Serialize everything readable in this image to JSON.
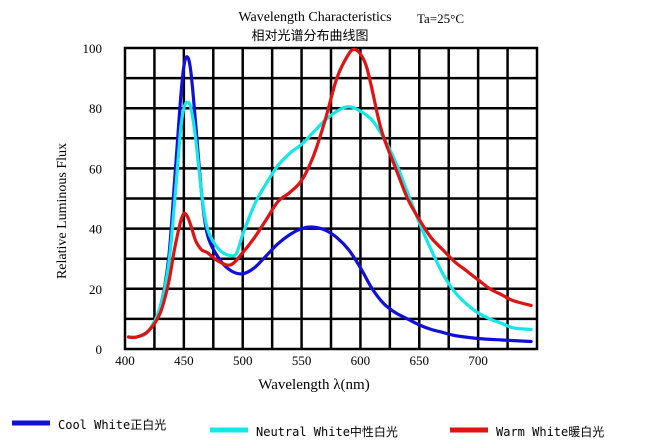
{
  "chart_data": {
    "type": "line",
    "title": "Wavelength Characteristics",
    "subtitle": "相对光谱分布曲线图",
    "condition": "Ta=25°C",
    "xlabel": "Wavelength λ(nm)",
    "ylabel": "Relative Luminous Flux",
    "xlim": [
      400,
      750
    ],
    "ylim": [
      0,
      100
    ],
    "x_ticks": [
      400,
      450,
      500,
      550,
      600,
      650,
      700
    ],
    "x_tick_labels": [
      "400",
      "450",
      "500",
      "550",
      "600",
      "650",
      "700"
    ],
    "y_ticks": [
      0,
      20,
      40,
      60,
      80,
      100
    ],
    "y_tick_labels": [
      "0",
      "20",
      "40",
      "60",
      "80",
      "100"
    ],
    "grid": true,
    "legend_position": "bottom",
    "series": [
      {
        "name": "Cool White正白光",
        "color": "#1010d8",
        "points": [
          [
            403,
            4
          ],
          [
            410,
            4
          ],
          [
            420,
            6
          ],
          [
            430,
            14
          ],
          [
            437,
            30
          ],
          [
            442,
            55
          ],
          [
            447,
            82
          ],
          [
            450,
            94
          ],
          [
            453,
            97
          ],
          [
            456,
            92
          ],
          [
            460,
            75
          ],
          [
            465,
            52
          ],
          [
            470,
            38
          ],
          [
            480,
            30
          ],
          [
            490,
            26
          ],
          [
            500,
            25
          ],
          [
            510,
            27
          ],
          [
            520,
            31
          ],
          [
            530,
            35
          ],
          [
            540,
            38
          ],
          [
            550,
            40
          ],
          [
            560,
            40.5
          ],
          [
            570,
            39.5
          ],
          [
            580,
            37
          ],
          [
            590,
            33
          ],
          [
            600,
            27
          ],
          [
            610,
            20
          ],
          [
            620,
            15
          ],
          [
            630,
            12
          ],
          [
            640,
            10
          ],
          [
            650,
            8
          ],
          [
            660,
            6.5
          ],
          [
            670,
            5.5
          ],
          [
            680,
            4.5
          ],
          [
            700,
            3.5
          ],
          [
            720,
            3
          ],
          [
            745,
            2.5
          ]
        ]
      },
      {
        "name": "Neutral White中性白光",
        "color": "#12e8e8",
        "points": [
          [
            403,
            4
          ],
          [
            410,
            4
          ],
          [
            420,
            6
          ],
          [
            430,
            14
          ],
          [
            437,
            28
          ],
          [
            442,
            48
          ],
          [
            447,
            72
          ],
          [
            450,
            80
          ],
          [
            453,
            82
          ],
          [
            456,
            80
          ],
          [
            460,
            70
          ],
          [
            465,
            52
          ],
          [
            470,
            40
          ],
          [
            480,
            33
          ],
          [
            490,
            31
          ],
          [
            495,
            32
          ],
          [
            500,
            38
          ],
          [
            510,
            48
          ],
          [
            520,
            55
          ],
          [
            530,
            61
          ],
          [
            540,
            65
          ],
          [
            550,
            68
          ],
          [
            560,
            72
          ],
          [
            570,
            76
          ],
          [
            580,
            79
          ],
          [
            590,
            80.5
          ],
          [
            600,
            79
          ],
          [
            610,
            76
          ],
          [
            620,
            70
          ],
          [
            630,
            62
          ],
          [
            640,
            52
          ],
          [
            650,
            42
          ],
          [
            660,
            33
          ],
          [
            670,
            25
          ],
          [
            680,
            19
          ],
          [
            690,
            15
          ],
          [
            700,
            12
          ],
          [
            710,
            10
          ],
          [
            720,
            8.5
          ],
          [
            730,
            7
          ],
          [
            745,
            6.5
          ]
        ]
      },
      {
        "name": "Warm White暖白光",
        "color": "#e01212",
        "points": [
          [
            403,
            4
          ],
          [
            410,
            4
          ],
          [
            420,
            6
          ],
          [
            430,
            12
          ],
          [
            437,
            22
          ],
          [
            442,
            33
          ],
          [
            447,
            42
          ],
          [
            450,
            45
          ],
          [
            453,
            44
          ],
          [
            456,
            41
          ],
          [
            460,
            36
          ],
          [
            465,
            33
          ],
          [
            470,
            32
          ],
          [
            480,
            29
          ],
          [
            490,
            28
          ],
          [
            500,
            32
          ],
          [
            510,
            37
          ],
          [
            520,
            43
          ],
          [
            530,
            49
          ],
          [
            540,
            52
          ],
          [
            550,
            56
          ],
          [
            560,
            64
          ],
          [
            570,
            76
          ],
          [
            580,
            90
          ],
          [
            590,
            98
          ],
          [
            595,
            99.5
          ],
          [
            600,
            98
          ],
          [
            605,
            94
          ],
          [
            610,
            86
          ],
          [
            615,
            77
          ],
          [
            620,
            70
          ],
          [
            630,
            60
          ],
          [
            640,
            50
          ],
          [
            650,
            43
          ],
          [
            660,
            37
          ],
          [
            670,
            33
          ],
          [
            680,
            29
          ],
          [
            690,
            26
          ],
          [
            700,
            23
          ],
          [
            710,
            20
          ],
          [
            720,
            18
          ],
          [
            730,
            16
          ],
          [
            745,
            14.5
          ]
        ]
      }
    ]
  }
}
